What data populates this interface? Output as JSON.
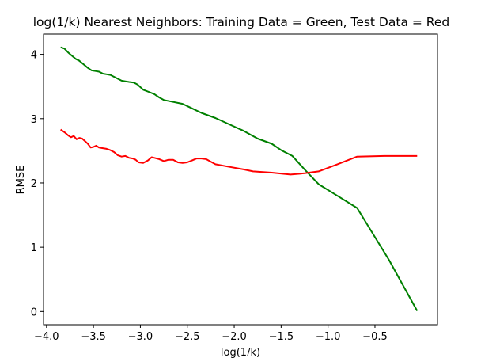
{
  "chart_data": {
    "type": "line",
    "title": "log(1/k) Nearest Neighbors: Training Data = Green, Test Data = Red",
    "xlabel": "log(1/k)",
    "ylabel": "RMSE",
    "xlim": [
      -4.0322,
      0.1663
    ],
    "ylim": [
      -0.2055,
      4.3156
    ],
    "grid": false,
    "legend": "none",
    "x_ticks": [
      {
        "value": -4.0,
        "label": "−4.0"
      },
      {
        "value": -3.5,
        "label": "−3.5"
      },
      {
        "value": -3.0,
        "label": "−3.0"
      },
      {
        "value": -2.5,
        "label": "−2.5"
      },
      {
        "value": -2.0,
        "label": "−2.0"
      },
      {
        "value": -1.5,
        "label": "−1.5"
      },
      {
        "value": -1.0,
        "label": "−1.0"
      },
      {
        "value": -0.5,
        "label": "−0.5"
      }
    ],
    "y_ticks": [
      {
        "value": 0,
        "label": "0"
      },
      {
        "value": 1,
        "label": "1"
      },
      {
        "value": 2,
        "label": "2"
      },
      {
        "value": 3,
        "label": "3"
      },
      {
        "value": 4,
        "label": "4"
      }
    ],
    "series": [
      {
        "color": "#008000",
        "points": [
          [
            -3.85,
            4.11
          ],
          [
            -3.81,
            4.09
          ],
          [
            -3.77,
            4.03
          ],
          [
            -3.73,
            3.98
          ],
          [
            -3.69,
            3.93
          ],
          [
            -3.65,
            3.9
          ],
          [
            -3.61,
            3.85
          ],
          [
            -3.56,
            3.79
          ],
          [
            -3.52,
            3.75
          ],
          [
            -3.48,
            3.74
          ],
          [
            -3.44,
            3.73
          ],
          [
            -3.4,
            3.7
          ],
          [
            -3.36,
            3.69
          ],
          [
            -3.32,
            3.68
          ],
          [
            -3.28,
            3.65
          ],
          [
            -3.24,
            3.62
          ],
          [
            -3.2,
            3.59
          ],
          [
            -3.16,
            3.58
          ],
          [
            -3.12,
            3.57
          ],
          [
            -3.07,
            3.56
          ],
          [
            -3.03,
            3.53
          ],
          [
            -3.0,
            3.49
          ],
          [
            -2.97,
            3.45
          ],
          [
            -2.9,
            3.41
          ],
          [
            -2.85,
            3.38
          ],
          [
            -2.8,
            3.33
          ],
          [
            -2.75,
            3.29
          ],
          [
            -2.65,
            3.26
          ],
          [
            -2.55,
            3.23
          ],
          [
            -2.45,
            3.16
          ],
          [
            -2.35,
            3.09
          ],
          [
            -2.2,
            3.01
          ],
          [
            -2.05,
            2.91
          ],
          [
            -1.9,
            2.81
          ],
          [
            -1.75,
            2.69
          ],
          [
            -1.6,
            2.61
          ],
          [
            -1.5,
            2.51
          ],
          [
            -1.38,
            2.42
          ],
          [
            -1.25,
            2.21
          ],
          [
            -1.1,
            1.98
          ],
          [
            -0.9,
            1.8
          ],
          [
            -0.69,
            1.61
          ],
          [
            -0.35,
            0.8
          ],
          [
            -0.05,
            0.01
          ]
        ]
      },
      {
        "color": "#ff0000",
        "points": [
          [
            -3.85,
            2.83
          ],
          [
            -3.8,
            2.78
          ],
          [
            -3.77,
            2.74
          ],
          [
            -3.74,
            2.71
          ],
          [
            -3.71,
            2.73
          ],
          [
            -3.68,
            2.68
          ],
          [
            -3.65,
            2.7
          ],
          [
            -3.62,
            2.69
          ],
          [
            -3.59,
            2.65
          ],
          [
            -3.56,
            2.61
          ],
          [
            -3.53,
            2.55
          ],
          [
            -3.5,
            2.56
          ],
          [
            -3.47,
            2.58
          ],
          [
            -3.44,
            2.55
          ],
          [
            -3.4,
            2.54
          ],
          [
            -3.36,
            2.53
          ],
          [
            -3.32,
            2.51
          ],
          [
            -3.28,
            2.48
          ],
          [
            -3.24,
            2.43
          ],
          [
            -3.2,
            2.41
          ],
          [
            -3.16,
            2.42
          ],
          [
            -3.12,
            2.39
          ],
          [
            -3.08,
            2.38
          ],
          [
            -3.05,
            2.36
          ],
          [
            -3.02,
            2.32
          ],
          [
            -2.97,
            2.31
          ],
          [
            -2.92,
            2.35
          ],
          [
            -2.88,
            2.4
          ],
          [
            -2.85,
            2.39
          ],
          [
            -2.8,
            2.37
          ],
          [
            -2.75,
            2.34
          ],
          [
            -2.7,
            2.36
          ],
          [
            -2.65,
            2.36
          ],
          [
            -2.6,
            2.32
          ],
          [
            -2.55,
            2.31
          ],
          [
            -2.5,
            2.32
          ],
          [
            -2.45,
            2.35
          ],
          [
            -2.4,
            2.38
          ],
          [
            -2.35,
            2.38
          ],
          [
            -2.3,
            2.37
          ],
          [
            -2.2,
            2.29
          ],
          [
            -2.05,
            2.25
          ],
          [
            -1.9,
            2.21
          ],
          [
            -1.8,
            2.18
          ],
          [
            -1.6,
            2.16
          ],
          [
            -1.4,
            2.13
          ],
          [
            -1.25,
            2.15
          ],
          [
            -1.1,
            2.18
          ],
          [
            -0.9,
            2.29
          ],
          [
            -0.69,
            2.41
          ],
          [
            -0.4,
            2.42
          ],
          [
            -0.05,
            2.42
          ]
        ]
      }
    ]
  }
}
